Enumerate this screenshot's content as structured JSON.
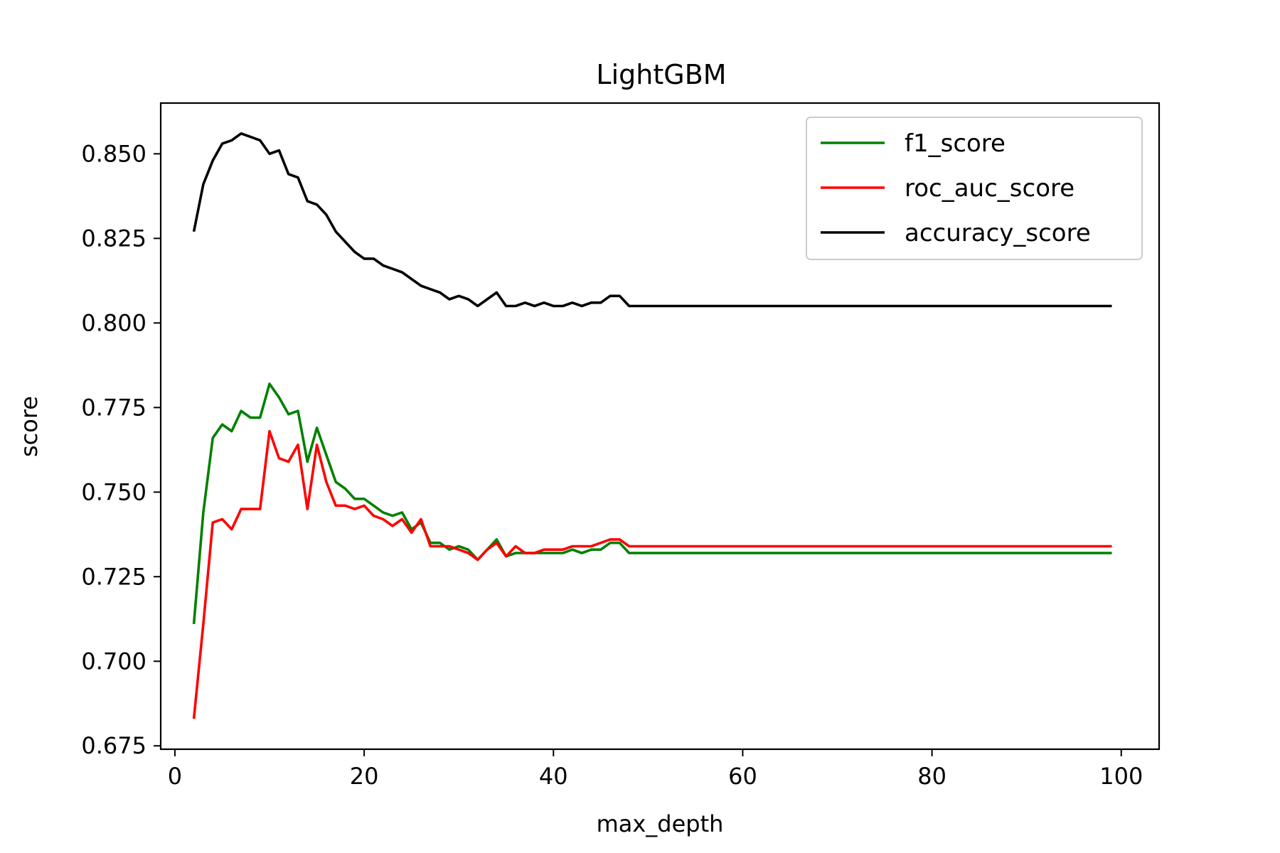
{
  "chart_data": {
    "type": "line",
    "title": "LightGBM",
    "xlabel": "max_depth",
    "ylabel": "score",
    "xlim": [
      -1.5,
      104
    ],
    "ylim": [
      0.674,
      0.865
    ],
    "xticks": [
      0,
      20,
      40,
      60,
      80,
      100
    ],
    "xtick_labels": [
      "0",
      "20",
      "40",
      "60",
      "80",
      "100"
    ],
    "yticks": [
      0.675,
      0.7,
      0.725,
      0.75,
      0.775,
      0.8,
      0.825,
      0.85
    ],
    "ytick_labels": [
      "0.675",
      "0.700",
      "0.725",
      "0.750",
      "0.775",
      "0.800",
      "0.825",
      "0.850"
    ],
    "grid": false,
    "legend_position": "top-right",
    "x": [
      2,
      3,
      4,
      5,
      6,
      7,
      8,
      9,
      10,
      11,
      12,
      13,
      14,
      15,
      16,
      17,
      18,
      19,
      20,
      21,
      22,
      23,
      24,
      25,
      26,
      27,
      28,
      29,
      30,
      31,
      32,
      33,
      34,
      35,
      36,
      37,
      38,
      39,
      40,
      41,
      42,
      43,
      44,
      45,
      46,
      47,
      48,
      99
    ],
    "series": [
      {
        "name": "f1_score",
        "color": "#008000",
        "values": [
          0.711,
          0.744,
          0.766,
          0.77,
          0.768,
          0.774,
          0.772,
          0.772,
          0.782,
          0.778,
          0.773,
          0.774,
          0.759,
          0.769,
          0.761,
          0.753,
          0.751,
          0.748,
          0.748,
          0.746,
          0.744,
          0.743,
          0.744,
          0.739,
          0.741,
          0.735,
          0.735,
          0.733,
          0.734,
          0.733,
          0.73,
          0.733,
          0.736,
          0.731,
          0.732,
          0.732,
          0.732,
          0.732,
          0.732,
          0.732,
          0.733,
          0.732,
          0.733,
          0.733,
          0.735,
          0.735,
          0.732,
          0.732
        ]
      },
      {
        "name": "roc_auc_score",
        "color": "#ff0000",
        "values": [
          0.683,
          0.711,
          0.741,
          0.742,
          0.739,
          0.745,
          0.745,
          0.745,
          0.768,
          0.76,
          0.759,
          0.764,
          0.745,
          0.764,
          0.753,
          0.746,
          0.746,
          0.745,
          0.746,
          0.743,
          0.742,
          0.74,
          0.742,
          0.738,
          0.742,
          0.734,
          0.734,
          0.734,
          0.733,
          0.732,
          0.73,
          0.733,
          0.735,
          0.731,
          0.734,
          0.732,
          0.732,
          0.733,
          0.733,
          0.733,
          0.734,
          0.734,
          0.734,
          0.735,
          0.736,
          0.736,
          0.734,
          0.734
        ]
      },
      {
        "name": "accuracy_score",
        "color": "#000000",
        "values": [
          0.827,
          0.841,
          0.848,
          0.853,
          0.854,
          0.856,
          0.855,
          0.854,
          0.85,
          0.851,
          0.844,
          0.843,
          0.836,
          0.835,
          0.832,
          0.827,
          0.824,
          0.821,
          0.819,
          0.819,
          0.817,
          0.816,
          0.815,
          0.813,
          0.811,
          0.81,
          0.809,
          0.807,
          0.808,
          0.807,
          0.805,
          0.807,
          0.809,
          0.805,
          0.805,
          0.806,
          0.805,
          0.806,
          0.805,
          0.805,
          0.806,
          0.805,
          0.806,
          0.806,
          0.808,
          0.808,
          0.805,
          0.805
        ]
      }
    ]
  }
}
